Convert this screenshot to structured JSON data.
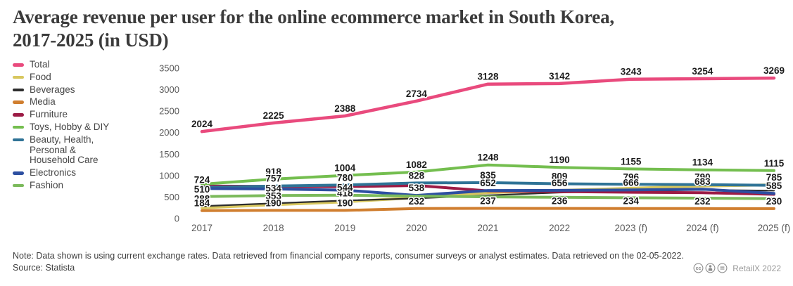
{
  "header": {
    "title_line1": "Average revenue per user for the online ecommerce market in South Korea,",
    "title_line2": "2017-2025 (in USD)"
  },
  "chart_data": {
    "type": "line",
    "title": "Average revenue per user for the online ecommerce market in South Korea, 2017-2025 (in USD)",
    "categories": [
      "2017",
      "2018",
      "2019",
      "2020",
      "2021",
      "2022",
      "2023 (f)",
      "2024 (f)",
      "2025 (f)"
    ],
    "y_axis": {
      "min": 0,
      "max": 3500,
      "tick_step": 500,
      "ticks": [
        3500,
        3000,
        2500,
        2000,
        1500,
        1000,
        500,
        0
      ]
    },
    "grid": "off",
    "legend_position": "left",
    "series": [
      {
        "name": "Total",
        "color": "#E94A7D",
        "width": 4.5,
        "values": [
          2024,
          2225,
          2388,
          2734,
          3128,
          3142,
          3243,
          3254,
          3269
        ],
        "labeled": [
          true,
          true,
          true,
          true,
          true,
          true,
          true,
          true,
          true
        ],
        "legend_lines": [
          "Total"
        ]
      },
      {
        "name": "Food",
        "color": "#D8C75F",
        "width": 4,
        "values": [
          250,
          320,
          390,
          485,
          600,
          655,
          705,
          755,
          785
        ],
        "labeled": [
          false,
          false,
          false,
          false,
          false,
          false,
          false,
          false,
          true
        ],
        "legend_lines": [
          "Food"
        ]
      },
      {
        "name": "Beverages",
        "color": "#2D2D2D",
        "width": 2.2,
        "values": [
          288,
          353,
          418,
          470,
          540,
          605,
          645,
          665,
          650
        ],
        "labeled": [
          true,
          true,
          true,
          false,
          false,
          false,
          false,
          false,
          false
        ],
        "legend_lines": [
          "Beverages"
        ]
      },
      {
        "name": "Media",
        "color": "#D07E2F",
        "width": 4,
        "values": [
          184,
          190,
          190,
          232,
          237,
          236,
          234,
          232,
          230
        ],
        "labeled": [
          true,
          true,
          true,
          true,
          true,
          true,
          true,
          true,
          true
        ],
        "legend_lines": [
          "Media"
        ]
      },
      {
        "name": "Furniture",
        "color": "#9C1B45",
        "width": 4,
        "values": [
          755,
          748,
          742,
          768,
          645,
          628,
          612,
          600,
          565
        ],
        "labeled": [
          false,
          false,
          false,
          false,
          false,
          false,
          false,
          false,
          false
        ],
        "legend_lines": [
          "Furniture"
        ]
      },
      {
        "name": "Toys, Hobby & DIY",
        "color": "#74BE4F",
        "width": 4,
        "values": [
          800,
          918,
          1004,
          1082,
          1248,
          1190,
          1155,
          1134,
          1115
        ],
        "labeled": [
          false,
          true,
          true,
          true,
          true,
          true,
          true,
          true,
          true
        ],
        "legend_lines": [
          "Toys, Hobby & DIY"
        ]
      },
      {
        "name": "Beauty, Health, Personal & Household Care",
        "color": "#2F7396",
        "width": 4,
        "values": [
          724,
          757,
          780,
          828,
          835,
          809,
          796,
          790,
          772
        ],
        "labeled": [
          true,
          true,
          true,
          true,
          true,
          true,
          true,
          true,
          false
        ],
        "legend_lines": [
          "Beauty, Health,",
          "Personal &",
          "Household Care"
        ]
      },
      {
        "name": "Electronics",
        "color": "#2D4FA1",
        "width": 4,
        "values": [
          700,
          688,
          660,
          538,
          652,
          656,
          666,
          683,
          585
        ],
        "labeled": [
          false,
          false,
          false,
          true,
          true,
          true,
          true,
          true,
          true
        ],
        "legend_lines": [
          "Electronics"
        ]
      },
      {
        "name": "Fashion",
        "color": "#7BBA5B",
        "width": 4,
        "values": [
          510,
          534,
          544,
          522,
          505,
          494,
          484,
          474,
          465
        ],
        "labeled": [
          true,
          true,
          true,
          false,
          false,
          false,
          false,
          false,
          false
        ],
        "legend_lines": [
          "Fashion"
        ]
      }
    ]
  },
  "footer": {
    "note": "Note: Data shown is using current exchange rates. Data retrieved from financial company reports, consumer surveys or analyst estimates. Data retrieved on the 02-05-2022.",
    "source": "Source: Statista",
    "credit": "RetailX 2022",
    "license_icons": [
      "cc-icon",
      "attribution-icon",
      "equals-icon"
    ]
  }
}
